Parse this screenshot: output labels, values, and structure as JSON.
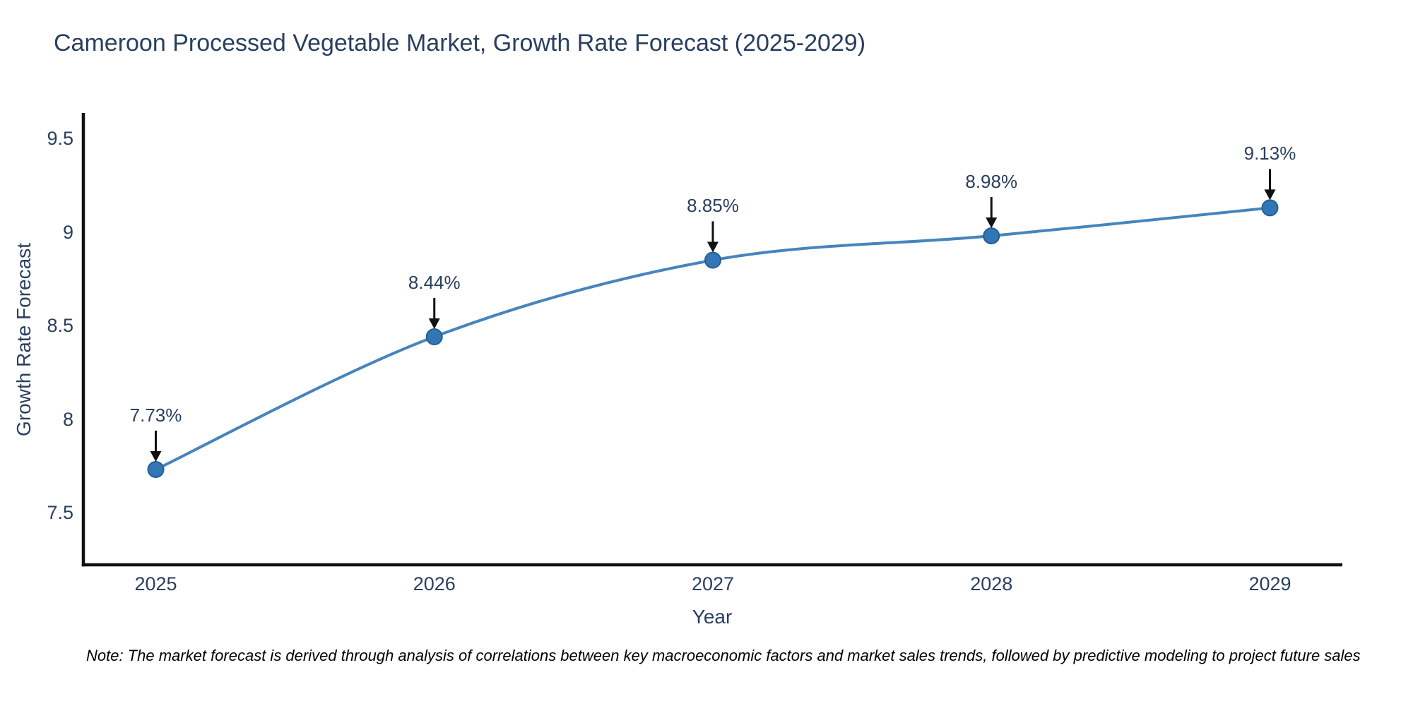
{
  "chart_data": {
    "type": "line",
    "title": "Cameroon Processed Vegetable Market, Growth Rate Forecast (2025-2029)",
    "xlabel": "Year",
    "ylabel": "Growth Rate Forecast",
    "x": [
      2025,
      2026,
      2027,
      2028,
      2029
    ],
    "y": [
      7.73,
      8.44,
      8.85,
      8.98,
      9.13
    ],
    "point_labels": [
      "7.73%",
      "8.44%",
      "8.85%",
      "8.98%",
      "9.13%"
    ],
    "x_tick_labels": [
      "2025",
      "2026",
      "2027",
      "2028",
      "2029"
    ],
    "x_tick_values": [
      2025,
      2026,
      2027,
      2028,
      2029
    ],
    "y_tick_labels": [
      "7.5",
      "8",
      "8.5",
      "9",
      "9.5"
    ],
    "y_tick_values": [
      7.5,
      8,
      8.5,
      9,
      9.5
    ],
    "xlim": [
      2024.74,
      2029.26
    ],
    "ylim": [
      7.22,
      9.63
    ],
    "grid": false,
    "legend": "none",
    "line_shape": "spline",
    "line_color": "#4684bd",
    "marker_color": "#3277b5",
    "marker_edge_color": "#275e92",
    "axis_color": "#111111",
    "arrow_color": "#111111",
    "text_color": "#2a3f5f",
    "note": "Note: The market forecast is derived through analysis of correlations between key macroeconomic factors and market sales trends, followed by predictive modeling to project future sales"
  }
}
